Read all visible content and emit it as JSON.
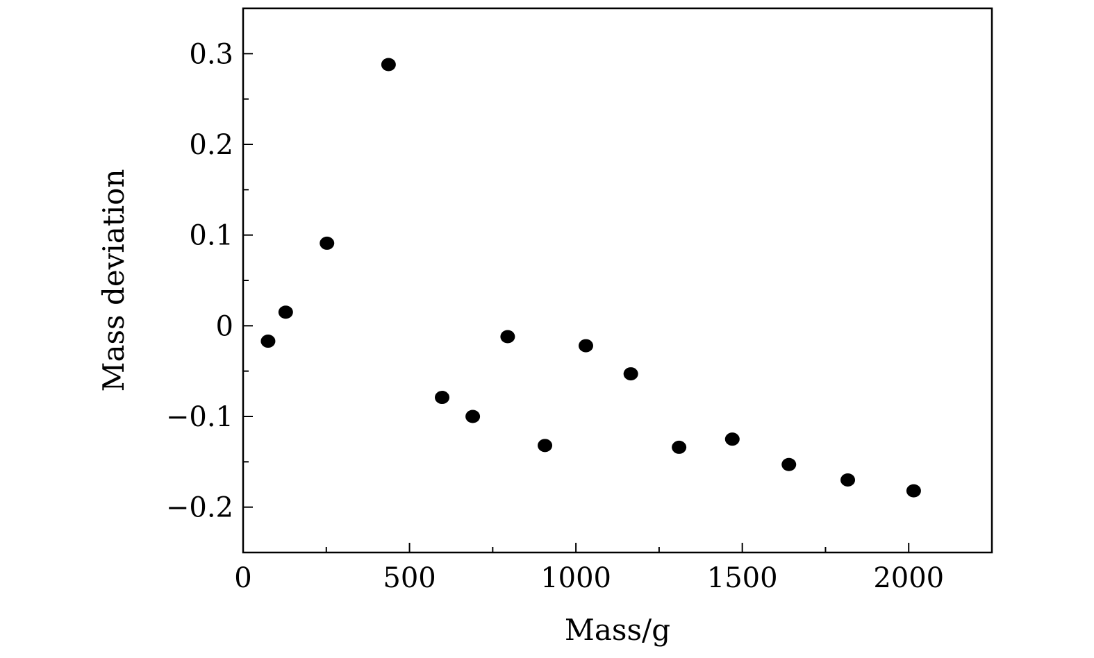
{
  "chart_data": {
    "type": "scatter",
    "title": "",
    "xlabel": "Mass/g",
    "ylabel": "Mass deviation",
    "xlim": [
      0,
      2250
    ],
    "ylim": [
      -0.25,
      0.35
    ],
    "x_ticks": [
      0,
      500,
      1000,
      1500,
      2000
    ],
    "x_tick_labels": [
      "0",
      "500",
      "1000",
      "1500",
      "2000"
    ],
    "y_ticks": [
      -0.2,
      -0.1,
      0,
      0.1,
      0.2,
      0.3
    ],
    "y_tick_labels": [
      "−0.2",
      "−0.1",
      "0",
      "0.1",
      "0.2",
      "0.3"
    ],
    "grid": false,
    "legend": "none",
    "marker_color": "#000000",
    "series": [
      {
        "x": [
          75,
          128,
          252,
          437,
          598,
          690,
          795,
          907,
          1030,
          1165,
          1310,
          1470,
          1640,
          1817,
          2015
        ],
        "y": [
          -0.017,
          0.015,
          0.091,
          0.288,
          -0.079,
          -0.1,
          -0.012,
          -0.132,
          -0.022,
          -0.053,
          -0.134,
          -0.125,
          -0.153,
          -0.17,
          -0.182
        ]
      }
    ]
  }
}
